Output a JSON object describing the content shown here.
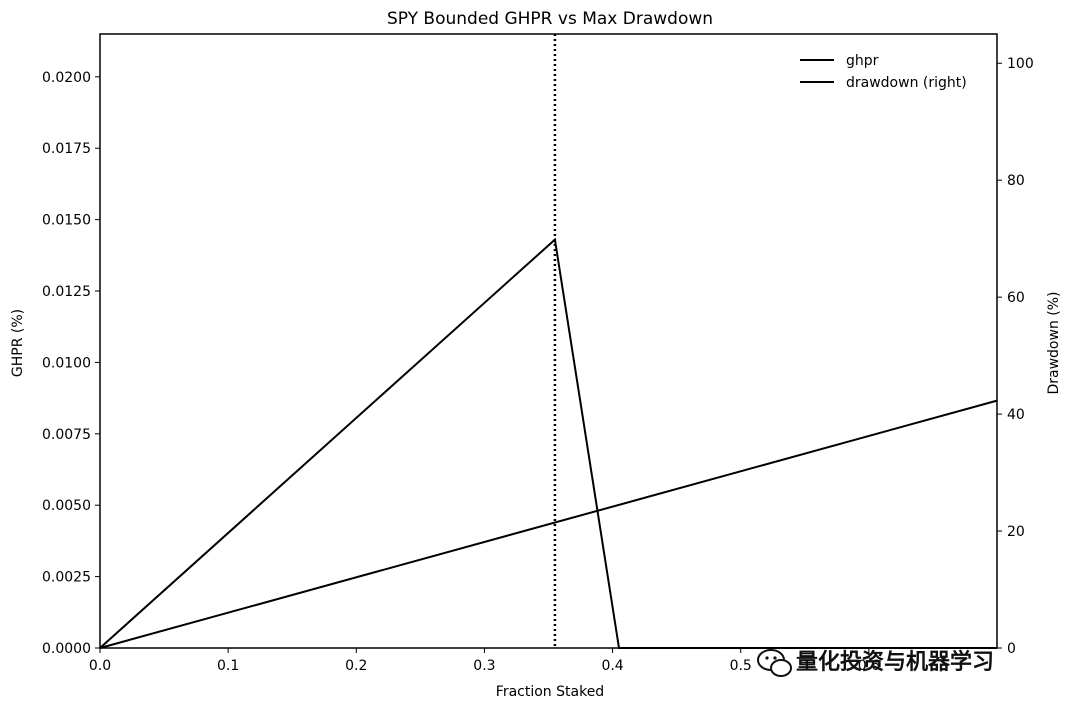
{
  "chart_data": {
    "type": "line",
    "title": "SPY Bounded GHPR vs Max Drawdown",
    "xlabel": "Fraction Staked",
    "ylabel_left": "GHPR (%)",
    "ylabel_right": "Drawdown (%)",
    "xlim": [
      0.0,
      0.7
    ],
    "ylim_left": [
      0.0,
      0.0215
    ],
    "ylim_right": [
      0,
      105
    ],
    "xticks": [
      "0.0",
      "0.1",
      "0.2",
      "0.3",
      "0.4",
      "0.5",
      "0.6"
    ],
    "yticks_left": [
      "0.0000",
      "0.0025",
      "0.0050",
      "0.0075",
      "0.0100",
      "0.0125",
      "0.0150",
      "0.0175",
      "0.0200"
    ],
    "yticks_right": [
      "0",
      "20",
      "40",
      "60",
      "80",
      "100"
    ],
    "series": [
      {
        "name": "ghpr",
        "axis": "left",
        "x": [
          0.0,
          0.355,
          0.405,
          0.7
        ],
        "y": [
          0.0,
          0.0143,
          0.0,
          0.0
        ]
      },
      {
        "name": "drawdown (right)",
        "axis": "right",
        "x": [
          0.0,
          0.7
        ],
        "y": [
          0,
          42.3
        ]
      }
    ],
    "vline": {
      "x": 0.355,
      "style": "dotted"
    },
    "legend": {
      "location": "top-right",
      "entries": [
        "ghpr",
        "drawdown (right)"
      ]
    },
    "grid": false
  },
  "watermark": {
    "text": "量化投资与机器学习",
    "icon": "wechat-icon"
  },
  "colors": {
    "line": "#000000",
    "background": "#ffffff"
  }
}
